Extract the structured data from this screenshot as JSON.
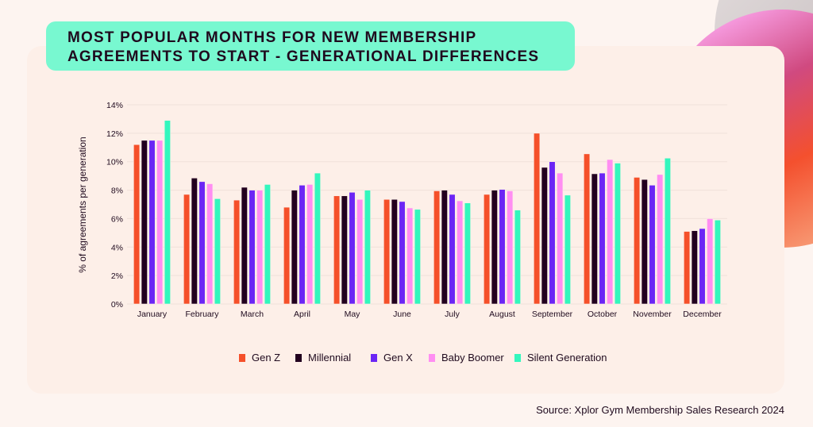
{
  "title": "MOST POPULAR MONTHS FOR NEW MEMBERSHIP AGREEMENTS TO START - GENERATIONAL DIFFERENCES",
  "source": "Source: Xplor Gym Membership Sales Research 2024",
  "chart_data": {
    "type": "bar",
    "title": "MOST POPULAR MONTHS FOR NEW MEMBERSHIP AGREEMENTS TO START - GENERATIONAL DIFFERENCES",
    "xlabel": "",
    "ylabel": "% of agreements per generation",
    "ylim": [
      0,
      14
    ],
    "yticks": [
      0,
      2,
      4,
      6,
      8,
      10,
      12,
      14
    ],
    "ytick_labels": [
      "0%",
      "2%",
      "4%",
      "6%",
      "8%",
      "10%",
      "12%",
      "14%"
    ],
    "grid": true,
    "legend_placement": "bottom",
    "categories": [
      "January",
      "February",
      "March",
      "April",
      "May",
      "June",
      "July",
      "August",
      "September",
      "October",
      "November",
      "December"
    ],
    "series": [
      {
        "name": "Gen Z",
        "color": "#f5502a",
        "values": [
          11.2,
          7.7,
          7.3,
          6.8,
          7.6,
          7.35,
          7.95,
          7.7,
          12.0,
          10.55,
          8.9,
          5.1
        ]
      },
      {
        "name": "Millennial",
        "color": "#22001f",
        "values": [
          11.5,
          8.85,
          8.2,
          8.0,
          7.6,
          7.35,
          8.0,
          8.0,
          9.6,
          9.15,
          8.75,
          5.15
        ]
      },
      {
        "name": "Gen X",
        "color": "#6b25f5",
        "values": [
          11.5,
          8.6,
          8.0,
          8.35,
          7.85,
          7.2,
          7.7,
          8.05,
          10.0,
          9.2,
          8.35,
          5.3
        ]
      },
      {
        "name": "Baby Boomer",
        "color": "#ff8ef2",
        "values": [
          11.5,
          8.45,
          8.0,
          8.4,
          7.35,
          6.75,
          7.25,
          7.95,
          9.2,
          10.15,
          9.1,
          6.0
        ]
      },
      {
        "name": "Silent Generation",
        "color": "#33f7bd",
        "values": [
          12.9,
          7.4,
          8.4,
          9.2,
          8.0,
          6.65,
          7.1,
          6.6,
          7.65,
          9.9,
          10.25,
          5.9
        ]
      }
    ]
  }
}
